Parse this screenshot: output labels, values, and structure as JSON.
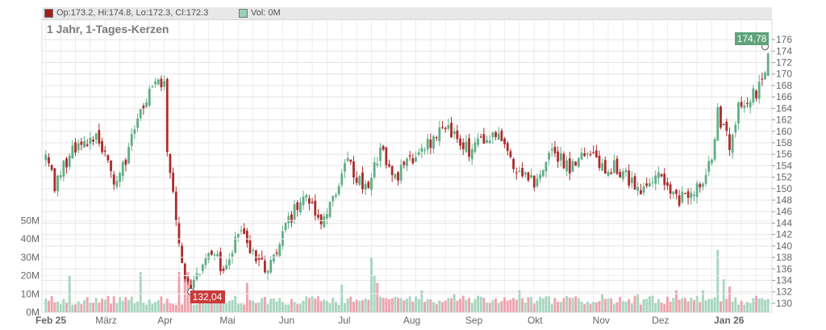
{
  "legend": {
    "ohlc_label": "Op:173.2, Hi:174.8, Lo:172.3, Cl:172.3",
    "vol_label": "Vol: 0M",
    "ohlc_color": "#a31c1c",
    "vol_color": "#9ccfb3"
  },
  "subtitle": "1 Jahr, 1-Tages-Kerzen",
  "colors": {
    "up": "#5fad86",
    "down": "#ad2a2a",
    "volume_up": "#a8d6bf",
    "volume_down": "#eea3ad",
    "grid": "#e4e4e4",
    "last_flag": "#5fa37a",
    "low_flag": "#c93a3a"
  },
  "chart_data": {
    "type": "candlestick",
    "price_axis": {
      "min": 129,
      "max": 177,
      "ticks": [
        130,
        132,
        134,
        136,
        138,
        140,
        142,
        144,
        146,
        148,
        150,
        152,
        154,
        156,
        158,
        160,
        162,
        164,
        166,
        168,
        170,
        172,
        174,
        176
      ]
    },
    "volume_axis": {
      "max": 55,
      "ticks": [
        0,
        10,
        20,
        30,
        40,
        50
      ],
      "tick_labels": [
        "0M",
        "10M",
        "20M",
        "30M",
        "40M",
        "50M"
      ]
    },
    "x_axis": {
      "labels": [
        "Feb 25",
        "März",
        "Apr",
        "Mai",
        "Jun",
        "Jul",
        "Aug",
        "Sep",
        "Okt",
        "Nov",
        "Dez",
        "Jan 26"
      ],
      "label_positions": [
        0,
        20,
        41,
        62,
        82,
        102,
        124,
        145,
        166,
        188,
        208,
        229
      ],
      "bold_labels": [
        "Feb 25",
        "Jan 26"
      ],
      "total_days": 245
    },
    "last_price": "174,78",
    "low_price": "132,04",
    "low_index": 49,
    "anchors": [
      [
        0,
        157.0
      ],
      [
        3,
        150.0
      ],
      [
        6,
        154.0
      ],
      [
        12,
        158.5
      ],
      [
        16,
        159.0
      ],
      [
        20,
        157.0
      ],
      [
        23,
        150.0
      ],
      [
        27,
        155.0
      ],
      [
        31,
        163.0
      ],
      [
        35,
        167.0
      ],
      [
        38,
        168.5
      ],
      [
        40,
        167.5
      ],
      [
        41,
        157.0
      ],
      [
        44,
        144.0
      ],
      [
        47,
        135.0
      ],
      [
        49,
        132.0
      ],
      [
        53,
        137.0
      ],
      [
        57,
        139.0
      ],
      [
        60,
        135.0
      ],
      [
        64,
        141.0
      ],
      [
        67,
        143.0
      ],
      [
        70,
        138.0
      ],
      [
        74,
        136.0
      ],
      [
        78,
        139.0
      ],
      [
        82,
        144.0
      ],
      [
        85,
        147.0
      ],
      [
        88,
        150.0
      ],
      [
        91,
        146.0
      ],
      [
        93,
        143.0
      ],
      [
        95,
        145.0
      ],
      [
        99,
        151.0
      ],
      [
        102,
        155.0
      ],
      [
        105,
        152.0
      ],
      [
        108,
        150.0
      ],
      [
        111,
        154.0
      ],
      [
        114,
        157.0
      ],
      [
        117,
        152.0
      ],
      [
        120,
        153.0
      ],
      [
        124,
        155.0
      ],
      [
        127,
        157.0
      ],
      [
        130,
        158.0
      ],
      [
        133,
        160.0
      ],
      [
        136,
        161.0
      ],
      [
        138,
        159.0
      ],
      [
        141,
        158.0
      ],
      [
        143,
        156.0
      ],
      [
        146,
        158.0
      ],
      [
        149,
        159.0
      ],
      [
        151,
        160.0
      ],
      [
        155,
        157.0
      ],
      [
        158,
        154.0
      ],
      [
        161,
        153.0
      ],
      [
        165,
        151.0
      ],
      [
        168,
        154.0
      ],
      [
        171,
        157.0
      ],
      [
        174,
        155.0
      ],
      [
        177,
        153.0
      ],
      [
        180,
        155.0
      ],
      [
        183,
        157.0
      ],
      [
        186,
        155.0
      ],
      [
        189,
        153.0
      ],
      [
        192,
        154.0
      ],
      [
        196,
        152.0
      ],
      [
        200,
        150.0
      ],
      [
        204,
        150.0
      ],
      [
        207,
        152.0
      ],
      [
        210,
        150.0
      ],
      [
        213,
        148.0
      ],
      [
        216,
        149.0
      ],
      [
        219,
        150.0
      ],
      [
        222,
        152.0
      ],
      [
        225,
        155.0
      ],
      [
        227,
        163.0
      ],
      [
        229,
        160.0
      ],
      [
        231,
        158.0
      ],
      [
        234,
        164.0
      ],
      [
        237,
        166.0
      ],
      [
        240,
        167.0
      ],
      [
        243,
        169.0
      ],
      [
        244,
        173.0
      ]
    ],
    "volume_peaks": {
      "8": 20,
      "32": 22,
      "45": 22,
      "47": 20,
      "48": 22,
      "49": 18,
      "68": 16,
      "100": 15,
      "110": 30,
      "111": 20,
      "112": 16,
      "127": 12,
      "138": 10,
      "160": 12,
      "188": 10,
      "200": 10,
      "213": 12,
      "222": 12,
      "227": 34,
      "229": 18,
      "231": 14
    },
    "seed": 20250211
  }
}
